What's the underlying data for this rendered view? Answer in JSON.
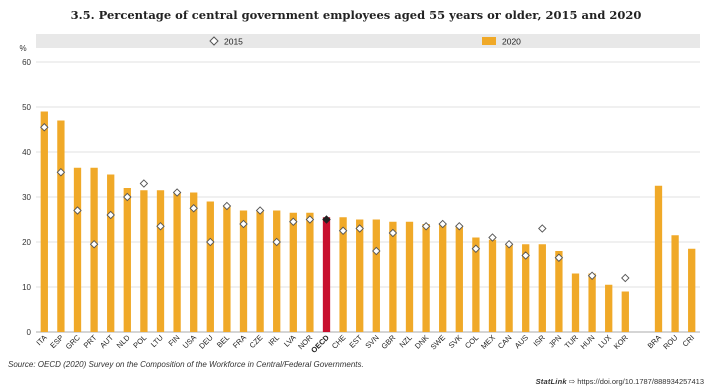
{
  "chart_data": {
    "type": "bar",
    "title": "3.5. Percentage of central government employees aged 55 years or older, 2015 and 2020",
    "ylabel": "%",
    "ylim": [
      0,
      60
    ],
    "yticks": [
      0,
      10,
      20,
      30,
      40,
      50,
      60
    ],
    "grid": true,
    "legend_position": "top",
    "categories": [
      "ITA",
      "ESP",
      "GRC",
      "PRT",
      "AUT",
      "NLD",
      "POL",
      "LTU",
      "FIN",
      "USA",
      "DEU",
      "BEL",
      "FRA",
      "CZE",
      "IRL",
      "LVA",
      "NOR",
      "OECD",
      "CHE",
      "EST",
      "SVN",
      "GBR",
      "NZL",
      "DNK",
      "SWE",
      "SVK",
      "COL",
      "MEX",
      "CAN",
      "AUS",
      "ISR",
      "JPN",
      "TUR",
      "HUN",
      "LUX",
      "KOR",
      "",
      "BRA",
      "ROU",
      "CRI"
    ],
    "series": [
      {
        "name": "2015",
        "marker": "diamond",
        "values": [
          45.5,
          35.5,
          27,
          19.5,
          26,
          30,
          33,
          23.5,
          31,
          27.5,
          20,
          28,
          24,
          27,
          20,
          24.5,
          25,
          25,
          22.5,
          23,
          18,
          22,
          null,
          23.5,
          24,
          23.5,
          18.5,
          21,
          19.5,
          17,
          23,
          16.5,
          null,
          12.5,
          null,
          12,
          null,
          null,
          null,
          null
        ]
      },
      {
        "name": "2020",
        "marker": "bar",
        "values": [
          49,
          47,
          36.5,
          36.5,
          35,
          32,
          31.5,
          31.5,
          31,
          31,
          29,
          28,
          27,
          27,
          27,
          26.5,
          26.5,
          25.5,
          25.5,
          25,
          25,
          24.5,
          24.5,
          24,
          24,
          23.5,
          21,
          20.5,
          19.5,
          19.5,
          19.5,
          18,
          13,
          13,
          10.5,
          9,
          null,
          32.5,
          21.5,
          18.5
        ]
      }
    ],
    "highlight_category": "OECD",
    "colors": {
      "bar": "#f0a928",
      "highlight": "#c8102e",
      "band": "#e8e8e8",
      "grid": "#d9d9d9",
      "marker_fill": "#ffffff",
      "marker_stroke": "#555555"
    }
  },
  "footer": {
    "source": "Source: OECD (2020) Survey on the Composition of the Workforce in Central/Federal Governments.",
    "statlink_label": "StatLink",
    "statlink_url": "https://doi.org/10.1787/888934257413"
  }
}
